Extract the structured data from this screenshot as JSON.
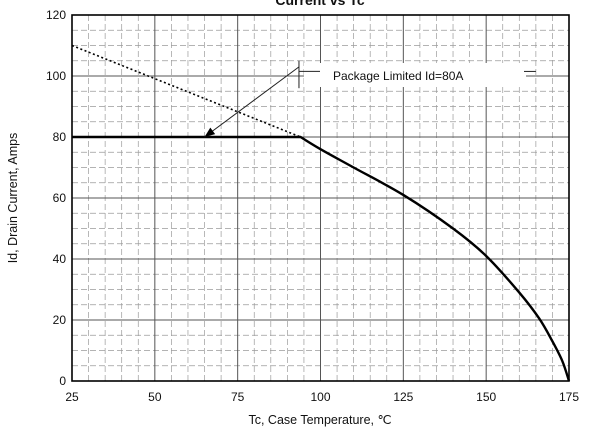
{
  "chart_data": {
    "type": "line",
    "title": "Current  vs Tc",
    "xlabel": "Tc, Case Temperature, ℃",
    "ylabel": "Id, Drain Current, Amps",
    "xlim": [
      25,
      175
    ],
    "ylim": [
      0,
      120
    ],
    "x_ticks": [
      25,
      50,
      75,
      100,
      125,
      150,
      175
    ],
    "y_ticks": [
      0,
      20,
      40,
      60,
      80,
      100,
      120
    ],
    "x_minor_step": 5,
    "y_minor_step": 5,
    "grid": "dashed major and minor",
    "series": [
      {
        "style": "dotted",
        "x": [
          25,
          94
        ],
        "y": [
          110,
          80
        ]
      },
      {
        "style": "solid",
        "x": [
          25,
          94,
          100,
          110,
          125,
          140,
          150,
          160,
          166,
          170,
          173,
          175
        ],
        "y": [
          80,
          80,
          76,
          70,
          61,
          50,
          41,
          29,
          20.5,
          13,
          6.5,
          0
        ]
      }
    ],
    "annotations": [
      {
        "text": "Package Limited Id=80A",
        "x": 130,
        "y": 100,
        "arrow_from": [
          93.5,
          103
        ],
        "arrow_to": [
          65,
          80
        ]
      }
    ]
  }
}
